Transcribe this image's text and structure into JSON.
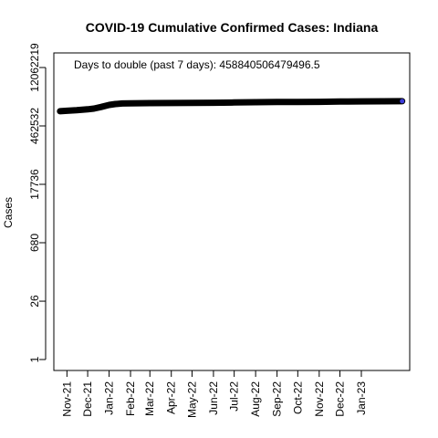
{
  "chart_data": {
    "type": "line",
    "title": "COVID-19 Cumulative Confirmed Cases: Indiana",
    "xlabel": "",
    "ylabel": "Cases",
    "y_scale": "log",
    "ylim": [
      1,
      12062219
    ],
    "y_ticks": [
      1,
      26,
      680,
      17736,
      462532,
      12062219
    ],
    "x_ticks": [
      "Nov-21",
      "Dec-21",
      "Jan-22",
      "Feb-22",
      "Mar-22",
      "Apr-22",
      "May-22",
      "Jun-22",
      "Jul-22",
      "Aug-22",
      "Sep-22",
      "Oct-22",
      "Nov-22",
      "Dec-22",
      "Jan-23"
    ],
    "xlim": [
      "2021-10-17",
      "2023-03-08"
    ],
    "annotation": "Days to double (past 7 days): 458840506479496.5",
    "grid": false,
    "series": [
      {
        "color": "#000000",
        "end_marker_color": "#3b3bd9",
        "x": [
          "2021-10-22",
          "2021-11-01",
          "2021-11-15",
          "2021-12-01",
          "2021-12-10",
          "2021-12-20",
          "2022-01-01",
          "2022-01-10",
          "2022-01-20",
          "2022-02-01",
          "2022-03-01",
          "2022-04-01",
          "2022-05-01",
          "2022-06-01",
          "2022-07-01",
          "2022-08-01",
          "2022-09-01",
          "2022-10-01",
          "2022-11-01",
          "2022-12-01",
          "2023-01-01",
          "2023-02-01",
          "2023-03-01"
        ],
        "values": [
          1050000,
          1080000,
          1110000,
          1170000,
          1220000,
          1330000,
          1490000,
          1570000,
          1620000,
          1640000,
          1650000,
          1660000,
          1670000,
          1690000,
          1710000,
          1740000,
          1760000,
          1770000,
          1780000,
          1800000,
          1820000,
          1830000,
          1840000
        ]
      }
    ]
  }
}
